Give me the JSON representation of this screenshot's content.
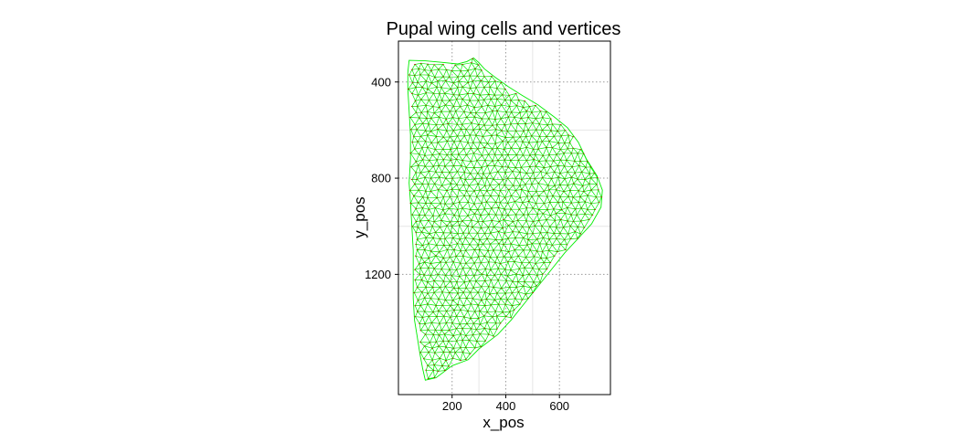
{
  "chart_data": {
    "type": "scatter",
    "title": "Pupal wing cells and vertices",
    "xlabel": "x_pos",
    "ylabel": "y_pos",
    "xlim": [
      0,
      790
    ],
    "ylim": [
      1700,
      230
    ],
    "y_reversed": true,
    "grid": true,
    "x_ticks": [
      200,
      400,
      600
    ],
    "y_ticks": [
      400,
      800,
      1200
    ],
    "x_tick_labels": [
      "200",
      "400",
      "600"
    ],
    "y_tick_labels": [
      "400",
      "800",
      "1200"
    ],
    "series": [
      {
        "values_description_kind": "cell-edges"
      },
      {
        "values_description_kind": "vertices"
      }
    ],
    "outline": [
      [
        40,
        310
      ],
      [
        100,
        312
      ],
      [
        160,
        318
      ],
      [
        220,
        325
      ],
      [
        255,
        315
      ],
      [
        280,
        300
      ],
      [
        300,
        320
      ],
      [
        320,
        345
      ],
      [
        360,
        380
      ],
      [
        410,
        420
      ],
      [
        460,
        455
      ],
      [
        520,
        495
      ],
      [
        580,
        545
      ],
      [
        630,
        590
      ],
      [
        670,
        650
      ],
      [
        700,
        720
      ],
      [
        740,
        790
      ],
      [
        760,
        850
      ],
      [
        755,
        920
      ],
      [
        720,
        990
      ],
      [
        670,
        1050
      ],
      [
        620,
        1110
      ],
      [
        570,
        1180
      ],
      [
        520,
        1250
      ],
      [
        470,
        1320
      ],
      [
        420,
        1390
      ],
      [
        370,
        1450
      ],
      [
        300,
        1510
      ],
      [
        260,
        1555
      ],
      [
        200,
        1580
      ],
      [
        140,
        1630
      ],
      [
        100,
        1640
      ],
      [
        90,
        1590
      ],
      [
        80,
        1530
      ],
      [
        70,
        1460
      ],
      [
        60,
        1390
      ],
      [
        55,
        1300
      ],
      [
        55,
        1200
      ],
      [
        55,
        1100
      ],
      [
        50,
        1000
      ],
      [
        45,
        900
      ],
      [
        40,
        820
      ],
      [
        45,
        720
      ],
      [
        45,
        620
      ],
      [
        40,
        520
      ],
      [
        35,
        430
      ],
      [
        35,
        360
      ]
    ],
    "colors": {
      "edges": "#00ee00",
      "vertices": "#cc0000",
      "grid": "#9a9a9a",
      "panel_border": "#000000"
    }
  }
}
